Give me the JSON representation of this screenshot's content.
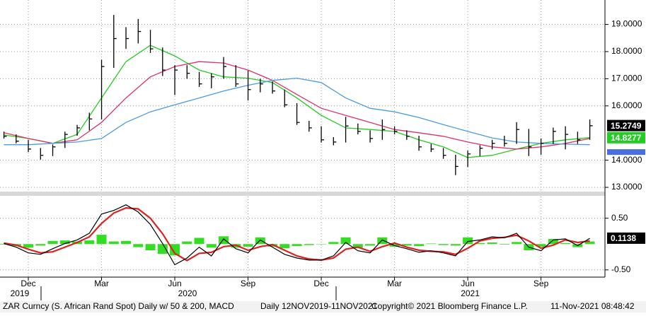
{
  "chart_data": [
    {
      "type": "ohlc",
      "xlim": [
        -1.16,
        23.62
      ],
      "ylim": [
        12.87,
        19.9
      ],
      "xticks": [
        {
          "value": 0,
          "label": "Dec"
        },
        {
          "value": 3,
          "label": "Mar"
        },
        {
          "value": 6,
          "label": "Jun"
        },
        {
          "value": 9,
          "label": "Sep"
        },
        {
          "value": 12,
          "label": "Dec"
        },
        {
          "value": 15,
          "label": "Mar"
        },
        {
          "value": 18,
          "label": "Jun"
        },
        {
          "value": 21,
          "label": "Sep"
        }
      ],
      "years": [
        {
          "value": -0.35,
          "label": "2019"
        },
        {
          "value": 6.52,
          "label": "2020"
        },
        {
          "value": 18.1,
          "label": "2021"
        }
      ],
      "yticks": [
        {
          "value": 13,
          "label": "13.0000"
        },
        {
          "value": 14,
          "label": "14.0000"
        },
        {
          "value": 16,
          "label": "16.0000"
        },
        {
          "value": 17,
          "label": "17.0000"
        },
        {
          "value": 18,
          "label": "18.0000"
        },
        {
          "value": 19,
          "label": "19.0000"
        }
      ],
      "grid": true,
      "color": "#000000",
      "x": [
        -1,
        -0.5,
        0,
        0.5,
        1,
        1.5,
        2,
        2.5,
        3,
        3.5,
        4,
        4.5,
        5,
        5.5,
        6,
        6.5,
        7,
        7.5,
        8,
        8.5,
        9,
        9.5,
        10,
        10.5,
        11,
        11.5,
        12,
        12.5,
        13,
        13.5,
        14,
        14.5,
        15,
        15.5,
        16,
        16.5,
        17,
        17.5,
        18,
        18.5,
        19,
        19.5,
        20,
        20.5,
        21,
        21.5,
        22,
        22.5,
        23
      ],
      "high": [
        15.05,
        14.95,
        14.75,
        14.45,
        14.58,
        15.05,
        15.3,
        15.75,
        17.7,
        19.35,
        18.9,
        19.2,
        18.8,
        18.15,
        17.5,
        17.5,
        17.25,
        17.2,
        17.8,
        17.5,
        17.3,
        17.0,
        16.9,
        16.6,
        16.1,
        15.45,
        15.25,
        14.85,
        15.6,
        15.35,
        15.1,
        15.5,
        15.25,
        15.1,
        14.9,
        14.6,
        14.45,
        14.2,
        14.35,
        14.55,
        14.75,
        14.9,
        15.4,
        15.15,
        14.8,
        15.2,
        15.25,
        15.05,
        15.5
      ],
      "low": [
        14.8,
        14.62,
        14.3,
        14.02,
        14.15,
        14.45,
        14.9,
        15.1,
        15.5,
        17.4,
        18.1,
        18.3,
        17.95,
        17.1,
        16.4,
        17.0,
        16.7,
        16.65,
        17.0,
        16.7,
        16.2,
        16.5,
        16.45,
        15.95,
        15.3,
        15.05,
        14.65,
        14.55,
        14.65,
        14.95,
        14.65,
        14.75,
        14.95,
        14.75,
        14.35,
        14.3,
        14.05,
        13.45,
        13.75,
        14.15,
        14.4,
        14.5,
        14.6,
        14.15,
        14.2,
        14.6,
        14.4,
        14.6,
        14.75
      ],
      "close": [
        14.88,
        14.7,
        14.41,
        14.18,
        14.49,
        14.95,
        15.19,
        15.52,
        17.45,
        18.48,
        18.48,
        18.74,
        18.1,
        17.32,
        17.32,
        17.2,
        16.81,
        17.07,
        17.45,
        16.81,
        16.6,
        16.81,
        16.55,
        16.04,
        15.39,
        15.19,
        14.75,
        14.67,
        15.26,
        15.06,
        14.8,
        15.13,
        15.06,
        14.88,
        14.49,
        14.41,
        14.18,
        13.77,
        14.23,
        14.44,
        14.62,
        14.62,
        15.13,
        14.49,
        14.62,
        15.06,
        14.95,
        14.75,
        15.27
      ],
      "series": [
        {
          "color": "#22cc22",
          "x": [
            -1,
            0,
            1,
            2,
            3,
            4,
            5,
            6,
            7,
            8,
            9,
            10,
            11,
            12,
            13,
            14,
            15,
            16,
            17,
            18,
            19,
            20,
            21,
            22,
            23
          ],
          "values": [
            14.93,
            14.8,
            14.62,
            14.95,
            16.29,
            17.63,
            18.23,
            17.84,
            17.32,
            17.07,
            17.02,
            16.86,
            16.29,
            15.65,
            15.19,
            15.13,
            15.06,
            14.75,
            14.49,
            14.1,
            14.18,
            14.41,
            14.62,
            14.75,
            14.83
          ]
        },
        {
          "color": "#e0306a",
          "x": [
            -1,
            0,
            1,
            2,
            3,
            4,
            5,
            6,
            7,
            8,
            9,
            10,
            11,
            12,
            13,
            14,
            15,
            16,
            17,
            18,
            19,
            20,
            21,
            22,
            23
          ],
          "values": [
            15.01,
            14.8,
            14.62,
            14.75,
            15.39,
            16.29,
            17.07,
            17.45,
            17.63,
            17.58,
            17.32,
            16.94,
            16.42,
            15.91,
            15.65,
            15.39,
            15.13,
            15.01,
            14.88,
            14.67,
            14.49,
            14.41,
            14.49,
            14.62,
            14.8
          ]
        },
        {
          "color": "#4a9be0",
          "x": [
            -1,
            0,
            1,
            2,
            3,
            4,
            5,
            6,
            7,
            8,
            9,
            10,
            11,
            12,
            13,
            14,
            15,
            16,
            17,
            18,
            19,
            20,
            21,
            22,
            23
          ],
          "values": [
            14.57,
            14.57,
            14.62,
            14.67,
            14.8,
            15.39,
            15.78,
            16.04,
            16.29,
            16.55,
            16.76,
            16.94,
            17.02,
            16.86,
            16.29,
            15.91,
            15.78,
            15.57,
            15.31,
            15.06,
            14.82,
            14.67,
            14.62,
            14.59,
            14.57
          ]
        }
      ],
      "price_labels": [
        {
          "value": 15.2749,
          "label": "15.2749",
          "color": "#000000"
        },
        {
          "value": 14.8277,
          "label": "14.8277",
          "color": "#22cc22"
        }
      ]
    },
    {
      "type": "macd",
      "ylim": [
        -0.64,
        0.92
      ],
      "yticks": [
        {
          "value": 0.5,
          "label": "0.50"
        },
        {
          "value": -0.5,
          "label": "-0.50"
        }
      ],
      "grid": true,
      "x": [
        -1,
        -0.5,
        0,
        0.5,
        1,
        1.5,
        2,
        2.5,
        3,
        3.5,
        4,
        4.5,
        5,
        5.5,
        6,
        6.5,
        7,
        7.5,
        8,
        8.5,
        9,
        9.5,
        10,
        10.5,
        11,
        11.5,
        12,
        12.5,
        13,
        13.5,
        14,
        14.5,
        15,
        15.5,
        16,
        16.5,
        17,
        17.5,
        18,
        18.5,
        19,
        19.5,
        20,
        20.5,
        21,
        21.5,
        22,
        22.5,
        23
      ],
      "macd": [
        0.01,
        -0.06,
        -0.17,
        -0.2,
        -0.09,
        0.01,
        0.08,
        0.21,
        0.58,
        0.65,
        0.76,
        0.62,
        0.38,
        0.01,
        -0.4,
        -0.27,
        -0.06,
        -0.23,
        0.1,
        -0.09,
        -0.17,
        0.08,
        -0.06,
        -0.2,
        -0.27,
        -0.31,
        -0.31,
        -0.23,
        0.03,
        -0.13,
        -0.17,
        0.08,
        -0.03,
        -0.09,
        -0.16,
        -0.13,
        -0.17,
        -0.23,
        0.05,
        0.08,
        0.14,
        0.12,
        0.21,
        -0.06,
        -0.13,
        0.08,
        0.1,
        -0.03,
        0.11
      ],
      "signal": [
        0.02,
        -0.02,
        -0.1,
        -0.17,
        -0.15,
        -0.06,
        0.03,
        0.14,
        0.4,
        0.6,
        0.7,
        0.68,
        0.5,
        0.2,
        -0.18,
        -0.32,
        -0.18,
        -0.16,
        -0.05,
        -0.02,
        -0.12,
        -0.05,
        -0.01,
        -0.12,
        -0.23,
        -0.29,
        -0.31,
        -0.27,
        -0.1,
        -0.06,
        -0.14,
        -0.05,
        0.02,
        -0.06,
        -0.12,
        -0.14,
        -0.15,
        -0.2,
        -0.08,
        0.06,
        0.11,
        0.13,
        0.17,
        0.06,
        -0.08,
        -0.02,
        0.08,
        0.03,
        0.06
      ],
      "histogram": [
        -0.01,
        -0.04,
        -0.07,
        -0.03,
        0.06,
        0.07,
        0.05,
        0.07,
        0.18,
        0.05,
        0.06,
        -0.06,
        -0.12,
        -0.19,
        -0.22,
        0.05,
        0.12,
        -0.07,
        0.15,
        -0.07,
        -0.05,
        0.13,
        -0.05,
        -0.08,
        -0.04,
        -0.02,
        0,
        0.04,
        0.13,
        -0.07,
        -0.03,
        0.13,
        -0.05,
        -0.03,
        -0.04,
        0.01,
        -0.02,
        -0.03,
        0.13,
        0.02,
        0.03,
        -0.01,
        0.04,
        -0.12,
        -0.05,
        0.1,
        0.02,
        -0.06,
        0.05
      ],
      "colors": {
        "macd": "#000000",
        "signal": "#e02020",
        "histogram": "#33dd22"
      },
      "last_label": {
        "value": 0.1138,
        "label": "0.1138"
      }
    }
  ],
  "footer": {
    "caption": "ZAR Curncy (S. African Rand Spot) Daily w/ 50 & 200, MACD",
    "range": "Daily 12NOV2019-11NOV2021",
    "copyright": "Copyright© 2021 Bloomberg Finance L.P.",
    "timestamp": "11-Nov-2021 08:48:42"
  }
}
